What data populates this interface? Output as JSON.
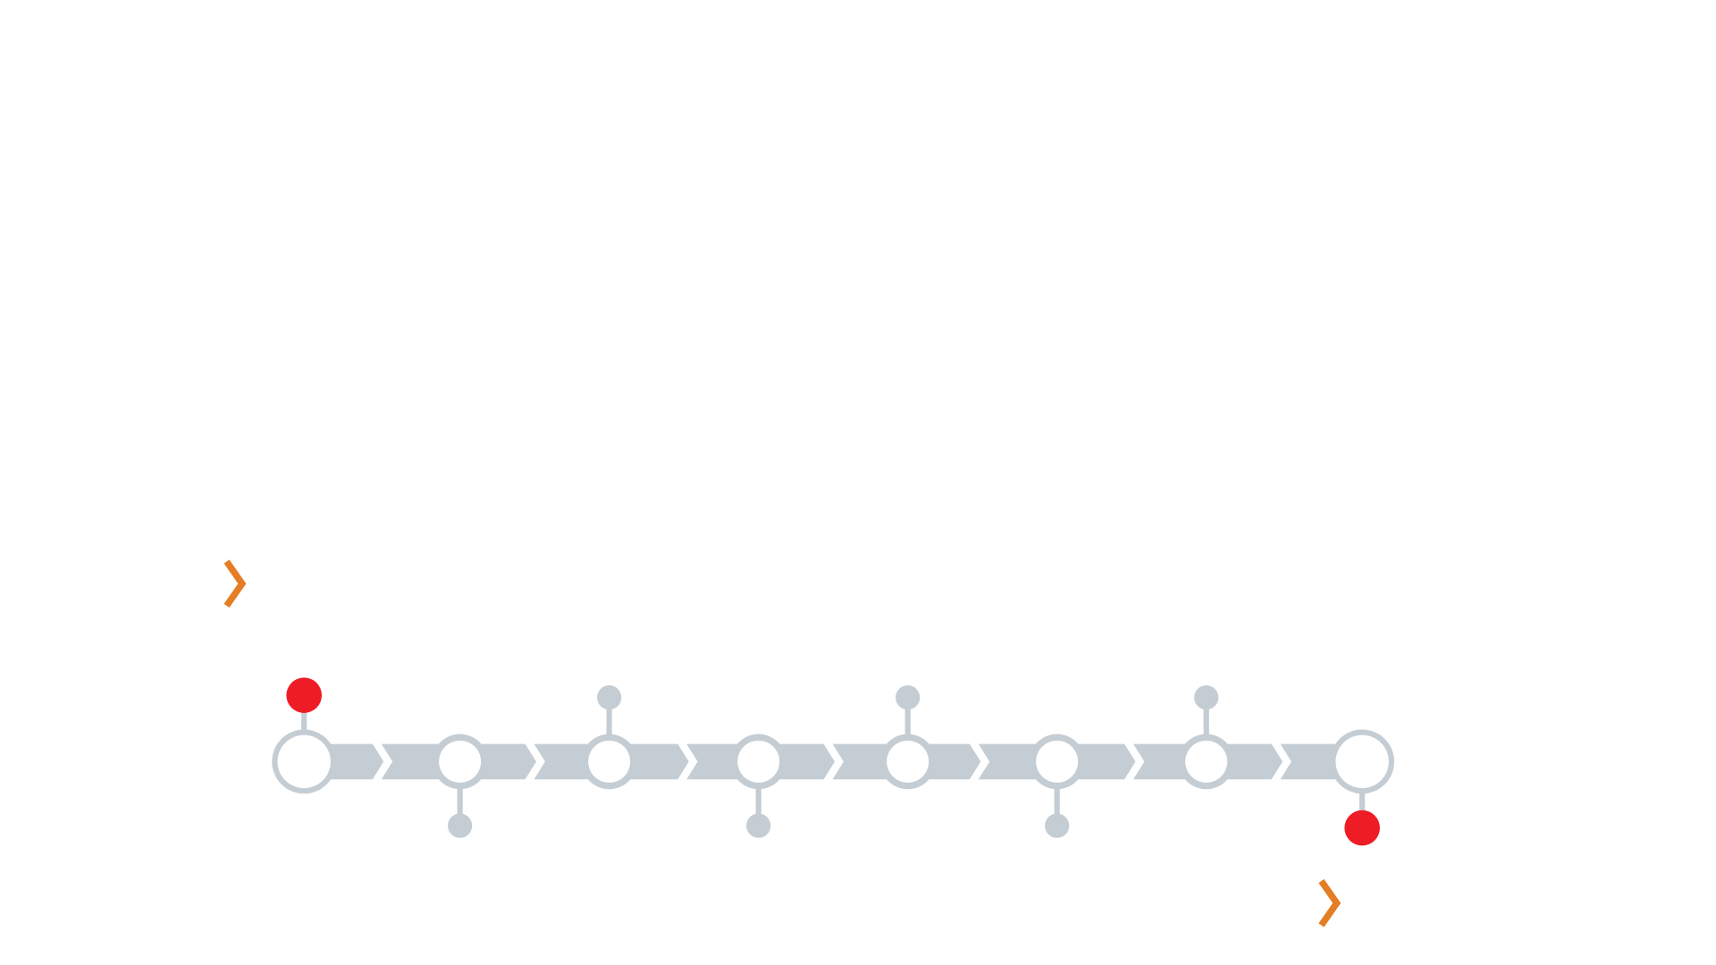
{
  "diagram": {
    "type": "process-timeline",
    "step_count": 8,
    "colors": {
      "background": "#ffffff",
      "track": "#c5cdd4",
      "node_fill": "#ffffff",
      "endpoint_accent": "#ee1c25",
      "chevron_accent": "#e47d23"
    },
    "steps": [
      {
        "node_size": "large",
        "stem": "up",
        "dot": "red"
      },
      {
        "node_size": "small",
        "stem": "down",
        "dot": "gray"
      },
      {
        "node_size": "small",
        "stem": "up",
        "dot": "gray"
      },
      {
        "node_size": "small",
        "stem": "down",
        "dot": "gray"
      },
      {
        "node_size": "small",
        "stem": "up",
        "dot": "gray"
      },
      {
        "node_size": "small",
        "stem": "down",
        "dot": "gray"
      },
      {
        "node_size": "small",
        "stem": "up",
        "dot": "gray"
      },
      {
        "node_size": "large",
        "stem": "down",
        "dot": "red"
      }
    ],
    "decorations": [
      {
        "kind": "chevron-right-icon",
        "color": "orange",
        "position": "upper-left"
      },
      {
        "kind": "chevron-right-icon",
        "color": "orange",
        "position": "lower-right"
      }
    ]
  }
}
